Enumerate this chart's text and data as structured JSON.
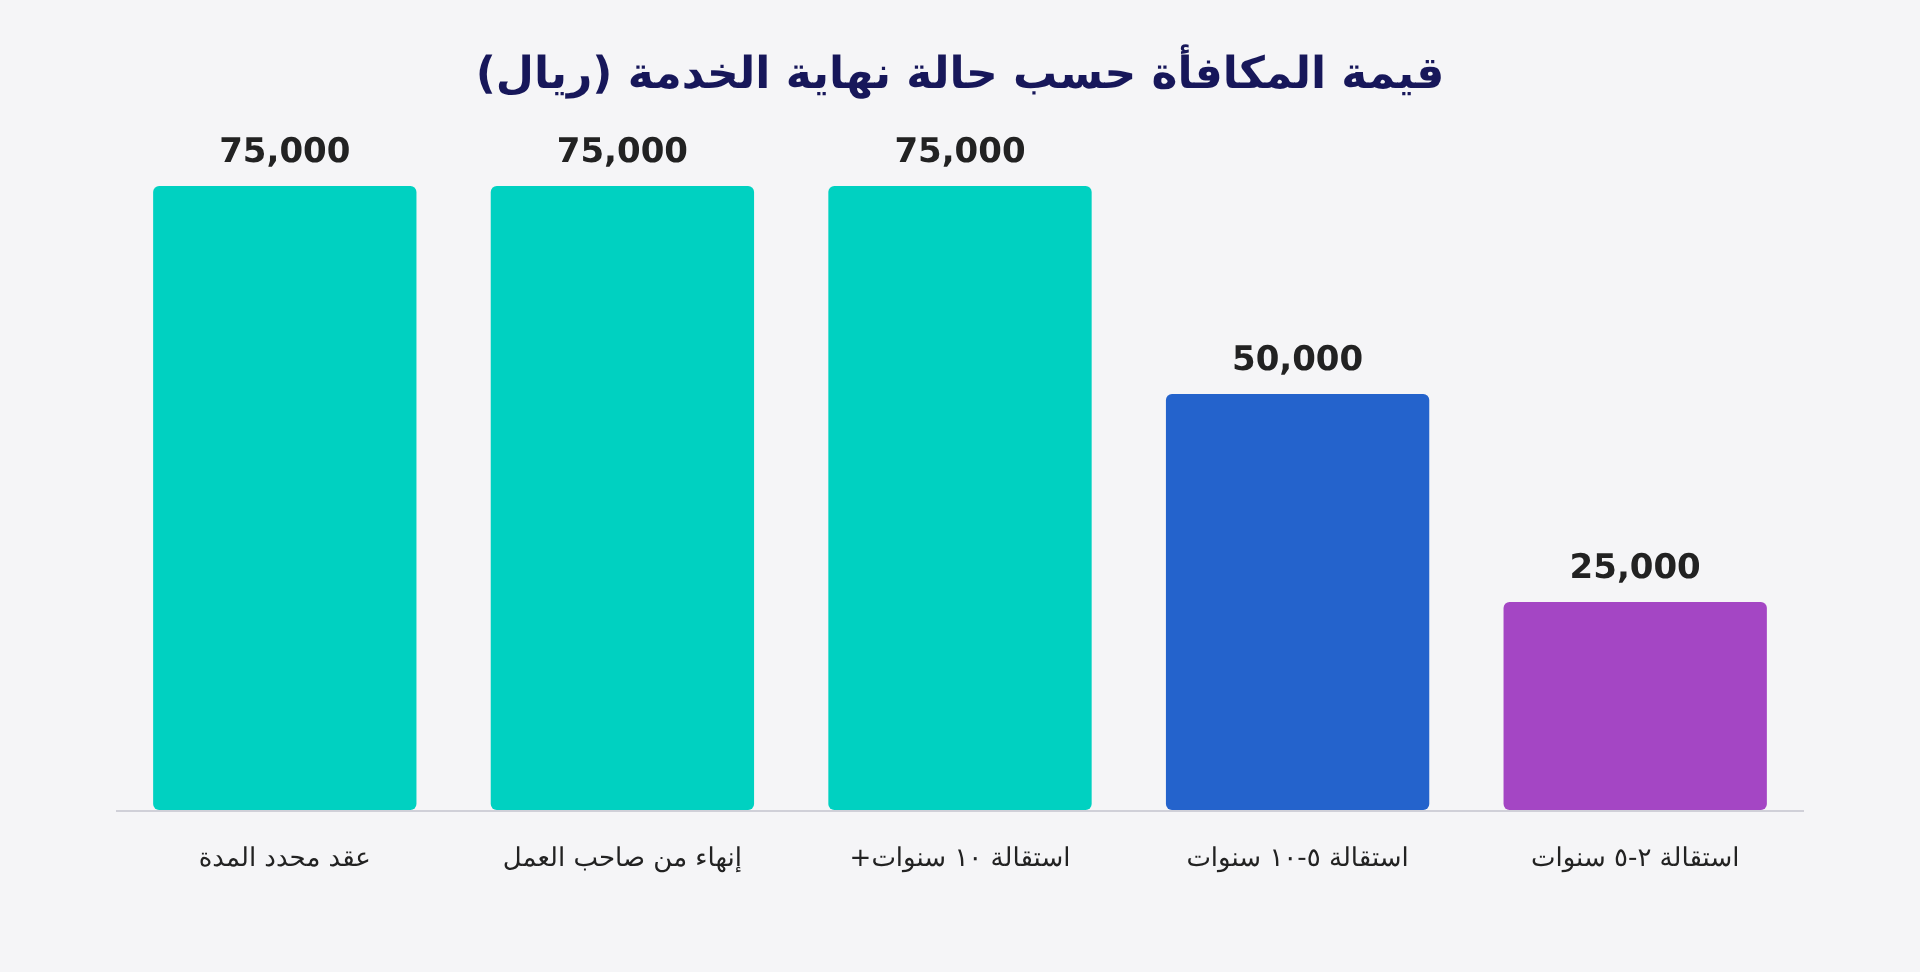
{
  "chart_data": {
    "type": "bar",
    "title": "قيمة المكافأة حسب حالة نهاية الخدمة (ريال)",
    "categories": [
      "عقد محدد المدة",
      "إنهاء من صاحب العمل",
      "استقالة ١٠ سنوات+",
      "استقالة ٥-١٠ سنوات",
      "استقالة ٢-٥ سنوات"
    ],
    "values": [
      75000,
      75000,
      75000,
      50000,
      25000
    ],
    "colors": [
      "#00d1c1",
      "#00d1c1",
      "#00d1c1",
      "#2463cc",
      "#a446c4"
    ],
    "value_labels": [
      "75,000",
      "75,000",
      "75,000",
      "50,000",
      "25,000"
    ]
  }
}
